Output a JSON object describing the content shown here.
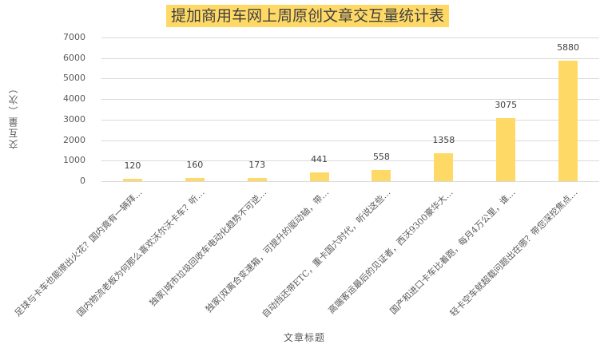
{
  "chart_data": {
    "type": "bar",
    "title": "提加商用车网上周原创文章交互量统计表",
    "xlabel": "文章标题",
    "ylabel": "交互量（次）",
    "ylim": [
      0,
      7000
    ],
    "yticks": [
      "0",
      "1000",
      "2000",
      "3000",
      "4000",
      "5000",
      "6000",
      "7000"
    ],
    "grid": true,
    "legend": null,
    "bar_color": "#FFD966",
    "categories": [
      "足球与卡车也能擦出火花？国内竟有一辆拜…",
      "国内物流老板为何那么喜欢沃尔沃卡车？听…",
      "独家|城市垃圾回收车电动化趋势不可逆…",
      "独家|双离合变速箱，可提升的驱动轴，带…",
      "自动挡还带ETC，重卡国六时代，听说这些…",
      "高端客运最后的见证者，西沃9300豪华大…",
      "国产和进口卡车比着跑，每月4万公里，谁…",
      "轻卡空车就超载问题出在哪？带您深挖焦点…"
    ],
    "values": [
      120,
      160,
      173,
      441,
      558,
      1358,
      3075,
      5880
    ],
    "data_labels": [
      "120",
      "160",
      "173",
      "441",
      "558",
      "1358",
      "3075",
      "5880"
    ]
  }
}
